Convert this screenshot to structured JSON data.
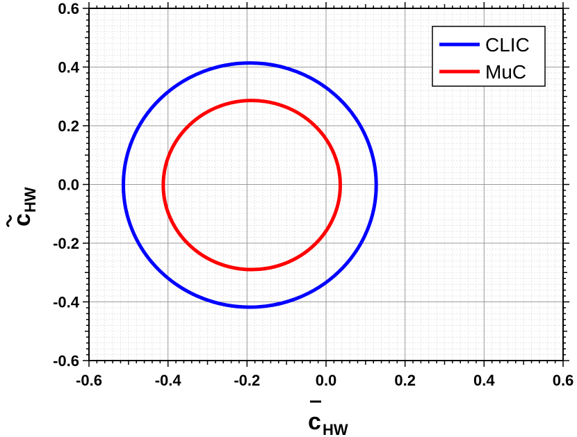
{
  "chart_data": {
    "type": "line",
    "xlabel": {
      "main": "c",
      "sub": "HW",
      "accent": "bar"
    },
    "ylabel": {
      "main": "c",
      "sub": "HW",
      "accent": "tilde"
    },
    "xlim": [
      -0.6,
      0.6
    ],
    "ylim": [
      -0.6,
      0.6
    ],
    "xticks": [
      -0.6,
      -0.4,
      -0.2,
      0.0,
      0.2,
      0.4,
      0.6
    ],
    "yticks": [
      -0.6,
      -0.4,
      -0.2,
      0.0,
      0.2,
      0.4,
      0.6
    ],
    "xtick_labels": [
      "-0.6",
      "-0.4",
      "-0.2",
      "0.0",
      "0.2",
      "0.4",
      "0.6"
    ],
    "ytick_labels": [
      "-0.6",
      "-0.4",
      "-0.2",
      "0.0",
      "0.2",
      "0.4",
      "0.6"
    ],
    "grid": true,
    "minor_grid": true,
    "legend_position": "top-right",
    "series": [
      {
        "name": "CLIC",
        "color": "#0000ff",
        "shape": "ellipse",
        "center": [
          -0.193,
          -0.002
        ],
        "radius_x": 0.32,
        "radius_y": 0.416
      },
      {
        "name": "MuC",
        "color": "#ff0000",
        "shape": "ellipse",
        "center": [
          -0.188,
          -0.002
        ],
        "radius_x": 0.224,
        "radius_y": 0.288
      }
    ]
  }
}
